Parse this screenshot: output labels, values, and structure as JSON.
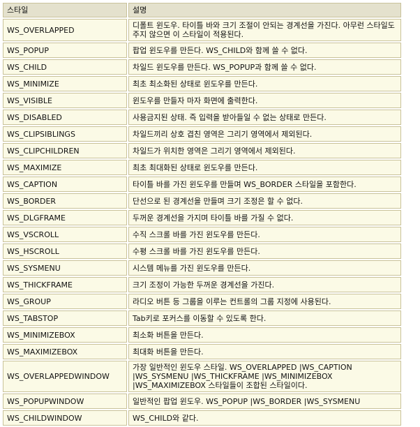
{
  "table": {
    "headers": {
      "style": "스타일",
      "description": "설명"
    },
    "rows": [
      {
        "style": "WS_OVERLAPPED",
        "desc": "디폴트 윈도우. 타이틀 바와 크기 조절이 안되는 경계선을 가진다. 아무런 스타일도 주지 않으면 이 스타일이 적용된다."
      },
      {
        "style": "WS_POPUP",
        "desc": "팝업 윈도우를 만든다. WS_CHILD와 함께 쓸 수 없다."
      },
      {
        "style": "WS_CHILD",
        "desc": "차일드 윈도우를 만든다. WS_POPUP과 함께 쓸 수 없다."
      },
      {
        "style": "WS_MINIMIZE",
        "desc": "최초 최소화된 상태로 윈도우를 만든다."
      },
      {
        "style": "WS_VISIBLE",
        "desc": "윈도우를 만들자 마자 화면에 출력한다."
      },
      {
        "style": "WS_DISABLED",
        "desc": "사용금지된 상태. 즉 입력을 받아들일 수 없는 상태로 만든다."
      },
      {
        "style": "WS_CLIPSIBLINGS",
        "desc": "차일드끼리 상호 겹친 영역은 그리기 영역에서 제외된다."
      },
      {
        "style": "WS_CLIPCHILDREN",
        "desc": "차일드가 위치한 영역은 그리기 영역에서 제외된다."
      },
      {
        "style": "WS_MAXIMIZE",
        "desc": "최초 최대화된 상태로 윈도우를 만든다."
      },
      {
        "style": "WS_CAPTION",
        "desc": "타이틀 바를 가진 윈도우를 만들며 WS_BORDER 스타일을 포함한다."
      },
      {
        "style": "WS_BORDER",
        "desc": "단선으로 된 경계선을 만들며 크기 조정은 할 수 없다."
      },
      {
        "style": "WS_DLGFRAME",
        "desc": "두꺼운 경계선을 가지며 타이틀 바를 가질 수 없다."
      },
      {
        "style": "WS_VSCROLL",
        "desc": "수직 스크롤 바를 가진 윈도우를 만든다."
      },
      {
        "style": "WS_HSCROLL",
        "desc": "수평 스크롤 바를 가진 윈도우를 만든다."
      },
      {
        "style": "WS_SYSMENU",
        "desc": "시스템 메뉴를 가진 윈도우를 만든다."
      },
      {
        "style": "WS_THICKFRAME",
        "desc": "크기 조정이 가능한 두꺼운 경계선을 가진다."
      },
      {
        "style": "WS_GROUP",
        "desc": "라디오 버튼 등 그룹을 이루는 컨트롤의 그룹 지정에 사용된다."
      },
      {
        "style": "WS_TABSTOP",
        "desc": "Tab키로 포커스를 이동할 수 있도록 한다."
      },
      {
        "style": "WS_MINIMIZEBOX",
        "desc": "최소화 버튼을 만든다."
      },
      {
        "style": "WS_MAXIMIZEBOX",
        "desc": "최대화 버튼을 만든다."
      },
      {
        "style": "WS_OVERLAPPEDWINDOW",
        "desc": "가장 일반적인 윈도우 스타일. WS_OVERLAPPED |WS_CAPTION |WS_SYSMENU |WS_THICKFRAME |WS_MINIMIZEBOX |WS_MAXIMIZEBOX 스타일들이 조합된 스타일이다."
      },
      {
        "style": "WS_POPUPWINDOW",
        "desc": "일반적인 팝업 윈도우. WS_POPUP |WS_BORDER |WS_SYSMENU"
      },
      {
        "style": "WS_CHILDWINDOW",
        "desc": "WS_CHILD와 같다."
      }
    ]
  }
}
